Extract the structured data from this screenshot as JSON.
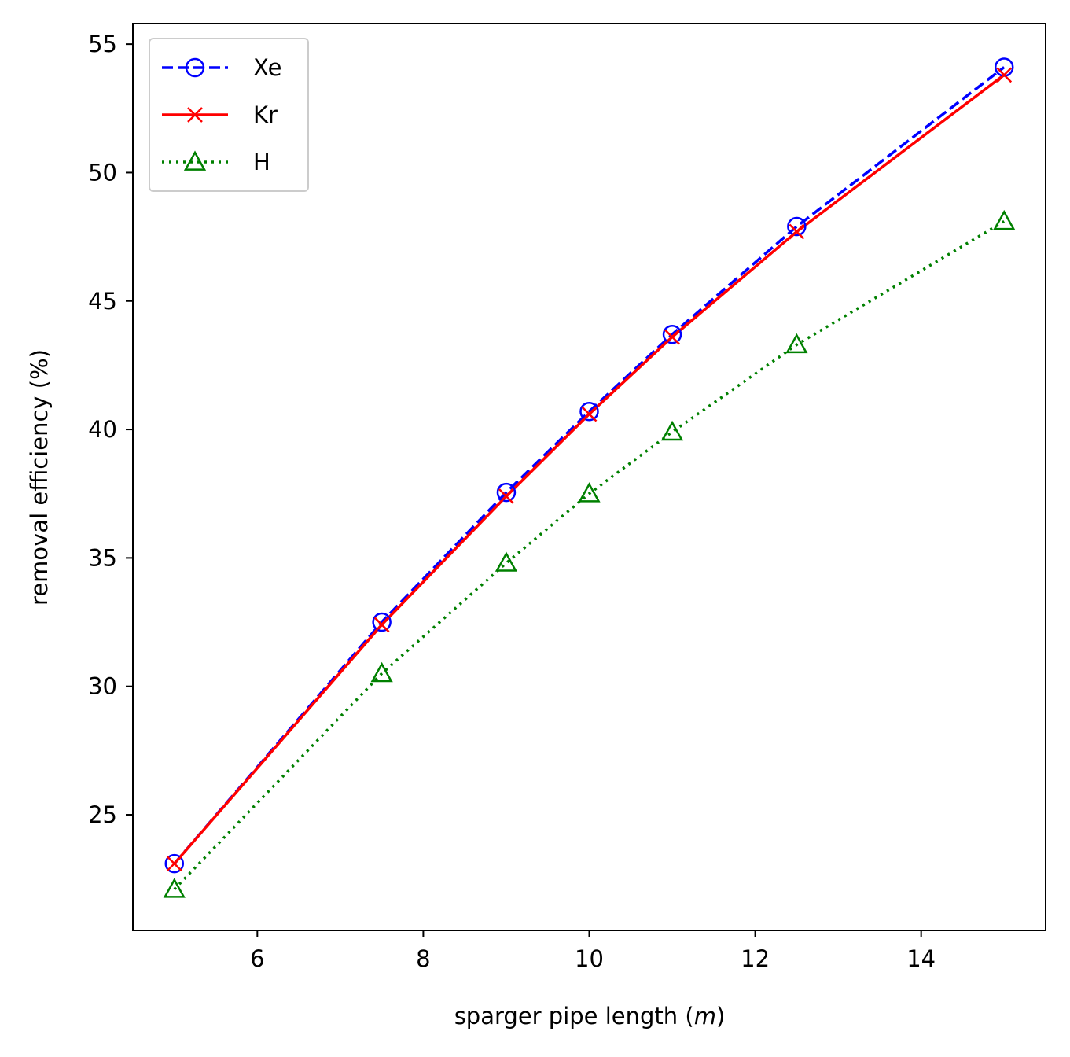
{
  "chart_data": {
    "type": "line",
    "xlabel_prefix": "sparger pipe length (",
    "xlabel_unit": "m",
    "xlabel_suffix": ")",
    "ylabel": "removal efficiency (%)",
    "xlim": [
      4.5,
      15.5
    ],
    "ylim": [
      20.5,
      55.8
    ],
    "xticks": [
      6,
      8,
      10,
      12,
      14
    ],
    "yticks": [
      25,
      30,
      35,
      40,
      45,
      50,
      55
    ],
    "legend_position": "upper-left",
    "grid": false,
    "series": [
      {
        "name": "Xe",
        "color": "#0000ff",
        "line_style": "dashed",
        "marker": "circle",
        "x": [
          5,
          7.5,
          9,
          10,
          11,
          12.5,
          15
        ],
        "y": [
          23.1,
          32.5,
          37.55,
          40.7,
          43.7,
          47.9,
          54.1
        ]
      },
      {
        "name": "Kr",
        "color": "#ff0000",
        "line_style": "solid",
        "marker": "x",
        "x": [
          5,
          7.5,
          9,
          10,
          11,
          12.5,
          15
        ],
        "y": [
          23.1,
          32.4,
          37.4,
          40.6,
          43.6,
          47.7,
          53.8
        ]
      },
      {
        "name": "H",
        "color": "#008000",
        "line_style": "dotted",
        "marker": "triangle",
        "x": [
          5,
          7.5,
          9,
          10,
          11,
          12.5,
          15
        ],
        "y": [
          22.1,
          30.5,
          34.8,
          37.5,
          39.9,
          43.3,
          48.1
        ]
      }
    ]
  }
}
